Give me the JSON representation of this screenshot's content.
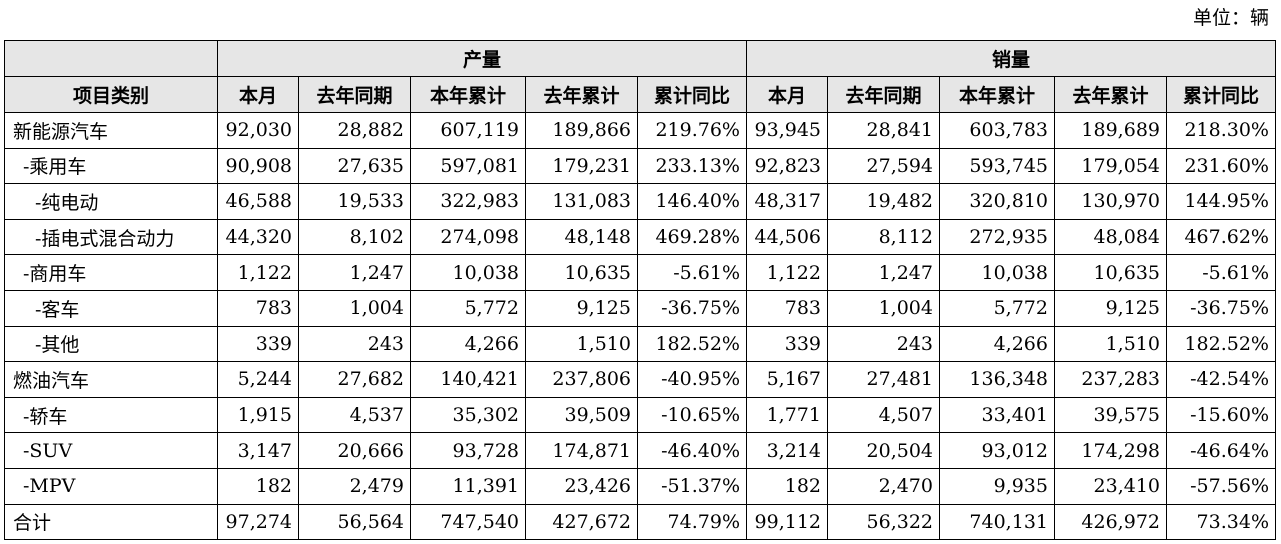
{
  "unit_label": "单位：辆",
  "header": {
    "category": "项目类别",
    "group_production": "产量",
    "group_sales": "销量",
    "columns": [
      "本月",
      "去年同期",
      "本年累计",
      "去年累计",
      "累计同比"
    ]
  },
  "rows": [
    {
      "label": "新能源汽车",
      "indent": 0,
      "production": [
        "92,030",
        "28,882",
        "607,119",
        "189,866",
        "219.76%"
      ],
      "sales": [
        "93,945",
        "28,841",
        "603,783",
        "189,689",
        "218.30%"
      ]
    },
    {
      "label": "-乘用车",
      "indent": 1,
      "production": [
        "90,908",
        "27,635",
        "597,081",
        "179,231",
        "233.13%"
      ],
      "sales": [
        "92,823",
        "27,594",
        "593,745",
        "179,054",
        "231.60%"
      ]
    },
    {
      "label": "-纯电动",
      "indent": 2,
      "production": [
        "46,588",
        "19,533",
        "322,983",
        "131,083",
        "146.40%"
      ],
      "sales": [
        "48,317",
        "19,482",
        "320,810",
        "130,970",
        "144.95%"
      ]
    },
    {
      "label": "-插电式混合动力",
      "indent": 2,
      "production": [
        "44,320",
        "8,102",
        "274,098",
        "48,148",
        "469.28%"
      ],
      "sales": [
        "44,506",
        "8,112",
        "272,935",
        "48,084",
        "467.62%"
      ]
    },
    {
      "label": "-商用车",
      "indent": 1,
      "production": [
        "1,122",
        "1,247",
        "10,038",
        "10,635",
        "-5.61%"
      ],
      "sales": [
        "1,122",
        "1,247",
        "10,038",
        "10,635",
        "-5.61%"
      ]
    },
    {
      "label": "-客车",
      "indent": 2,
      "production": [
        "783",
        "1,004",
        "5,772",
        "9,125",
        "-36.75%"
      ],
      "sales": [
        "783",
        "1,004",
        "5,772",
        "9,125",
        "-36.75%"
      ]
    },
    {
      "label": "-其他",
      "indent": 2,
      "production": [
        "339",
        "243",
        "4,266",
        "1,510",
        "182.52%"
      ],
      "sales": [
        "339",
        "243",
        "4,266",
        "1,510",
        "182.52%"
      ]
    },
    {
      "label": "燃油汽车",
      "indent": 0,
      "production": [
        "5,244",
        "27,682",
        "140,421",
        "237,806",
        "-40.95%"
      ],
      "sales": [
        "5,167",
        "27,481",
        "136,348",
        "237,283",
        "-42.54%"
      ]
    },
    {
      "label": "-轿车",
      "indent": 1,
      "production": [
        "1,915",
        "4,537",
        "35,302",
        "39,509",
        "-10.65%"
      ],
      "sales": [
        "1,771",
        "4,507",
        "33,401",
        "39,575",
        "-15.60%"
      ]
    },
    {
      "label": "-SUV",
      "indent": 1,
      "production": [
        "3,147",
        "20,666",
        "93,728",
        "174,871",
        "-46.40%"
      ],
      "sales": [
        "3,214",
        "20,504",
        "93,012",
        "174,298",
        "-46.64%"
      ]
    },
    {
      "label": "-MPV",
      "indent": 1,
      "production": [
        "182",
        "2,479",
        "11,391",
        "23,426",
        "-51.37%"
      ],
      "sales": [
        "182",
        "2,470",
        "9,935",
        "23,410",
        "-57.56%"
      ]
    },
    {
      "label": "合计",
      "indent": 0,
      "production": [
        "97,274",
        "56,564",
        "747,540",
        "427,672",
        "74.79%"
      ],
      "sales": [
        "99,112",
        "56,322",
        "740,131",
        "426,972",
        "73.34%"
      ]
    }
  ]
}
